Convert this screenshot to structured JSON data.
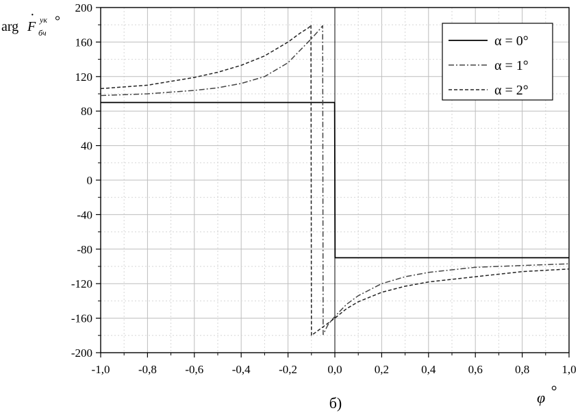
{
  "chart_data": {
    "type": "line",
    "caption": "б)",
    "ylabel": {
      "prefix": "arg",
      "symbol": "F",
      "superscript": "ук",
      "subscript": "бч",
      "unit": "°"
    },
    "xlabel": {
      "symbol": "φ",
      "unit": "°"
    },
    "xlim": [
      -1.0,
      1.0
    ],
    "ylim": [
      -200,
      200
    ],
    "xticks": [
      -1.0,
      -0.8,
      -0.6,
      -0.4,
      -0.2,
      0.0,
      0.2,
      0.4,
      0.6,
      0.8,
      1.0
    ],
    "xtick_labels": [
      "-1,0",
      "-0,8",
      "-0,6",
      "-0,4",
      "-0,2",
      "0,0",
      "0,2",
      "0,4",
      "0,6",
      "0,8",
      "1,0"
    ],
    "yticks": [
      -200,
      -160,
      -120,
      -80,
      -40,
      0,
      40,
      80,
      120,
      160,
      200
    ],
    "ytick_labels": [
      "-200",
      "-160",
      "-120",
      "-80",
      "-40",
      "0",
      "40",
      "80",
      "120",
      "160",
      "200"
    ],
    "grid": true,
    "legend_position": "top-right",
    "series": [
      {
        "name": "α = 0°",
        "style": "solid",
        "color": "#000000",
        "x": [
          -1.0,
          -0.8,
          -0.6,
          -0.4,
          -0.2,
          -0.001,
          0.001,
          0.2,
          0.4,
          0.6,
          0.8,
          1.0
        ],
        "y": [
          90,
          90,
          90,
          90,
          90,
          90,
          -90,
          -90,
          -90,
          -90,
          -90,
          -90
        ]
      },
      {
        "name": "α = 1°",
        "style": "dashdot",
        "color": "#444444",
        "x": [
          -1.0,
          -0.8,
          -0.6,
          -0.5,
          -0.4,
          -0.3,
          -0.2,
          -0.15,
          -0.1,
          -0.07,
          -0.052,
          -0.05,
          -0.03,
          0.0,
          0.05,
          0.1,
          0.2,
          0.3,
          0.4,
          0.5,
          0.6,
          0.8,
          1.0
        ],
        "y": [
          98,
          100,
          104,
          107,
          112,
          120,
          136,
          150,
          164,
          173,
          179,
          -179,
          -168,
          -158,
          -144,
          -134,
          -120,
          -112,
          -107,
          -104,
          -101,
          -99,
          -97
        ]
      },
      {
        "name": "α = 2°",
        "style": "dashed",
        "color": "#222222",
        "x": [
          -1.0,
          -0.8,
          -0.6,
          -0.5,
          -0.4,
          -0.3,
          -0.2,
          -0.15,
          -0.11,
          -0.102,
          -0.1,
          -0.08,
          -0.05,
          0.0,
          0.05,
          0.1,
          0.2,
          0.3,
          0.4,
          0.5,
          0.6,
          0.8,
          1.0
        ],
        "y": [
          106,
          110,
          119,
          125,
          133,
          144,
          160,
          170,
          177,
          180,
          -180,
          -176,
          -170,
          -160,
          -149,
          -141,
          -130,
          -123,
          -118,
          -115,
          -112,
          -106,
          -103
        ]
      }
    ]
  }
}
